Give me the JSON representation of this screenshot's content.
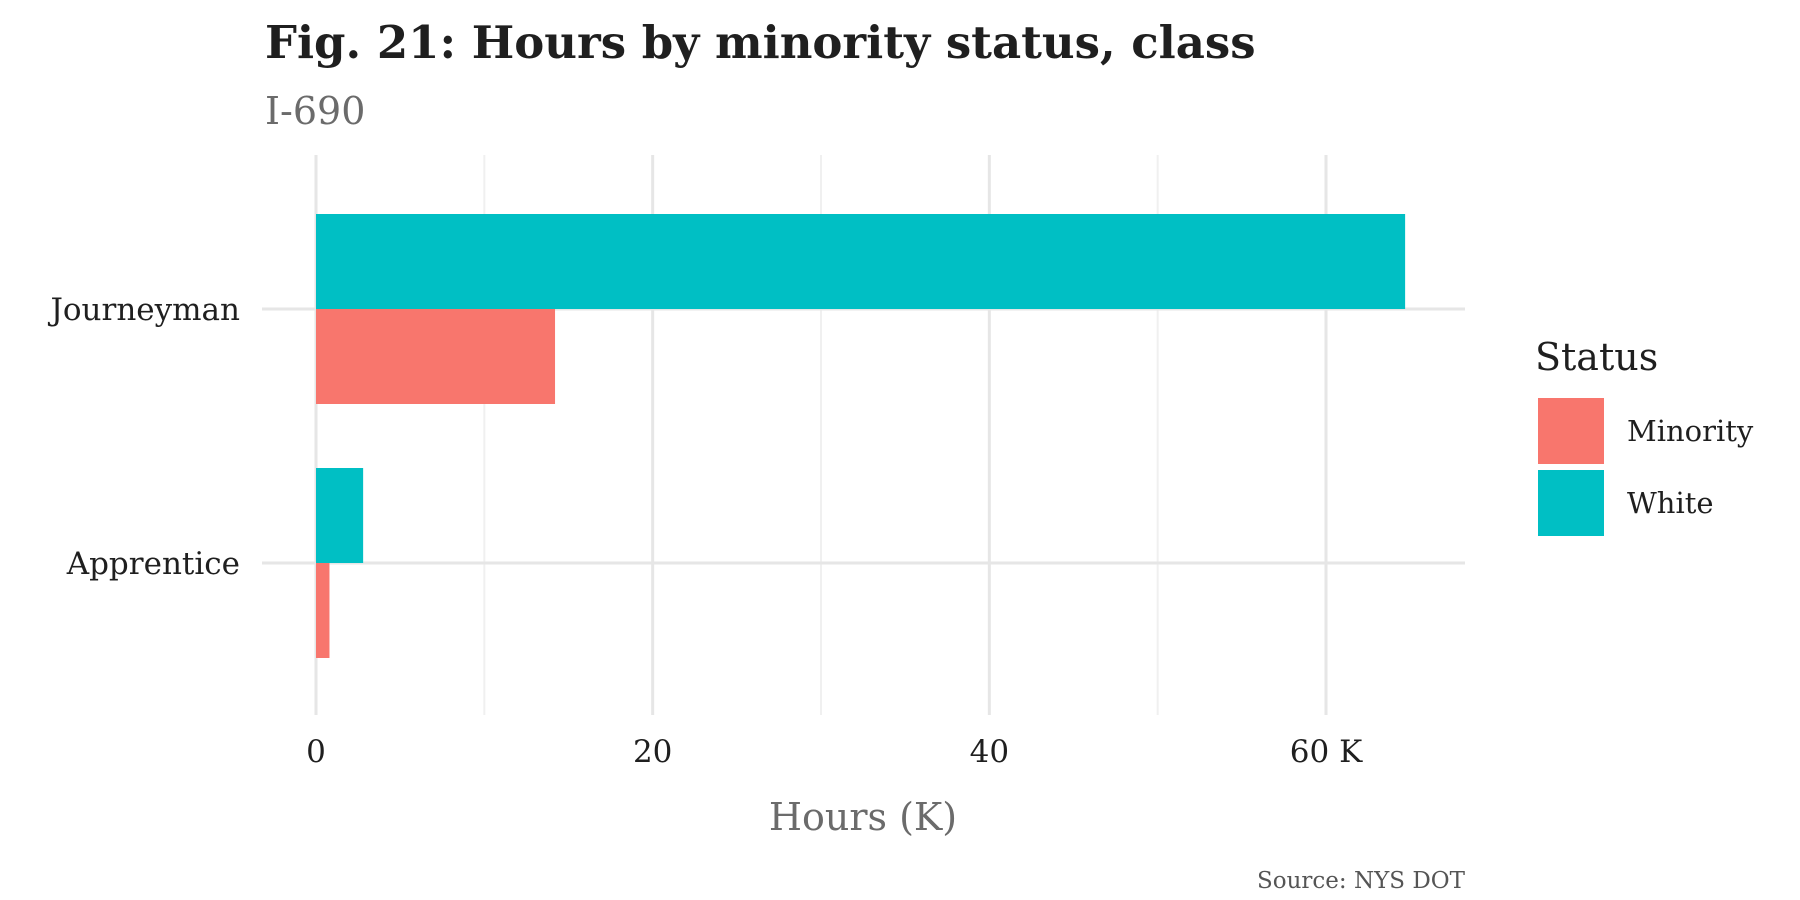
{
  "chart_data": {
    "type": "bar",
    "orientation": "horizontal",
    "title": "Fig. 21: Hours by minority status, class",
    "subtitle": "I-690",
    "xlabel": "Hours (K)",
    "ylabel": "",
    "caption": "Source: NYS DOT",
    "categories": [
      "Journeyman",
      "Apprentice"
    ],
    "series": [
      {
        "name": "Minority",
        "color": "#F8766D",
        "values": [
          14.2,
          0.8
        ]
      },
      {
        "name": "White",
        "color": "#00BFC4",
        "values": [
          64.7,
          2.8
        ]
      }
    ],
    "xlim": [
      0,
      68
    ],
    "x_ticks": [
      0,
      20,
      40,
      60
    ],
    "x_tick_labels": [
      "0",
      "20",
      "40",
      "60 K"
    ],
    "grid": true,
    "legend": {
      "title": "Status",
      "position": "right"
    }
  }
}
